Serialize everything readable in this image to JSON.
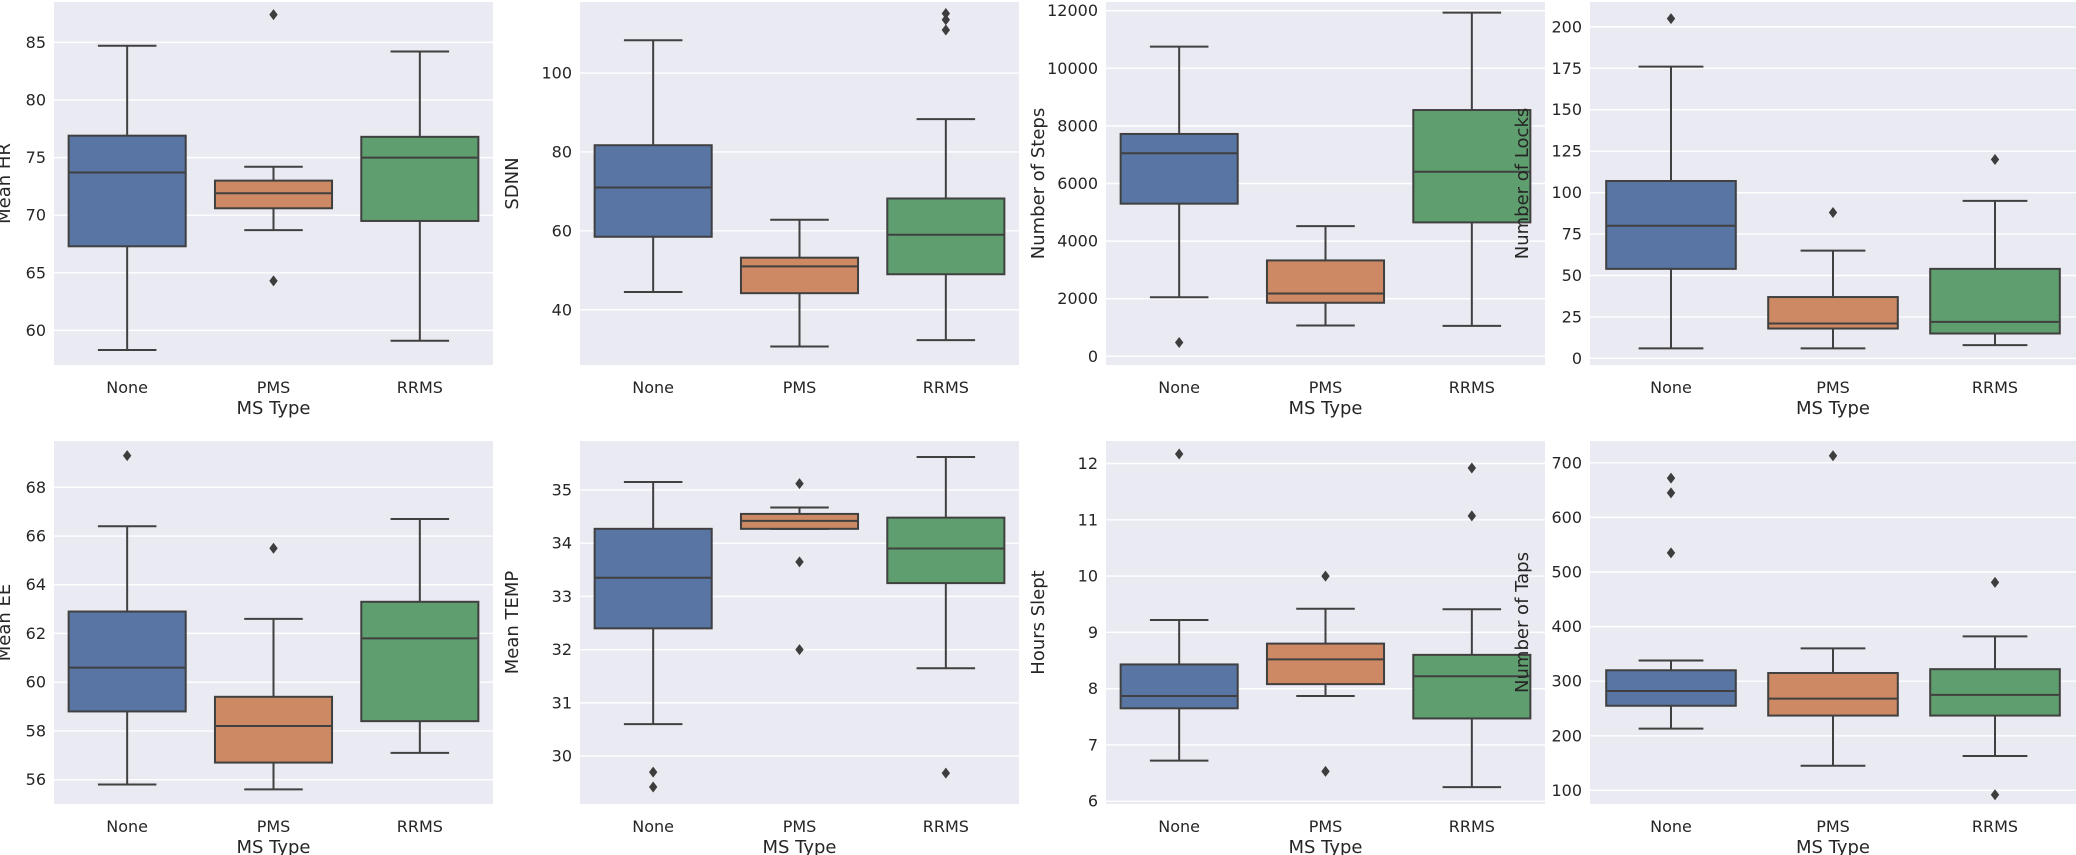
{
  "figure": {
    "rows": 2,
    "cols": 4,
    "palette": {
      "background": "#eaeaf2",
      "grid": "#ffffff",
      "text": "#262626",
      "line": "#404040"
    }
  },
  "chart_data": [
    {
      "type": "box",
      "xlabel": "MS Type",
      "ylabel": "Mean HR",
      "categories": [
        "None",
        "PMS",
        "RRMS"
      ],
      "ylim": [
        57,
        88.5
      ],
      "yticks": [
        60,
        65,
        70,
        75,
        80,
        85
      ],
      "colors": [
        "#5875a4",
        "#cc8963",
        "#5f9e6e"
      ],
      "boxes": [
        {
          "min": 58.3,
          "q1": 67.3,
          "median": 73.7,
          "q3": 76.9,
          "max": 84.7,
          "outliers": []
        },
        {
          "min": 68.7,
          "q1": 70.6,
          "median": 71.9,
          "q3": 73.0,
          "max": 74.2,
          "outliers": [
            87.4,
            64.3
          ]
        },
        {
          "min": 59.1,
          "q1": 69.5,
          "median": 75.0,
          "q3": 76.8,
          "max": 84.2,
          "outliers": []
        }
      ]
    },
    {
      "type": "box",
      "xlabel": "",
      "ylabel": "SDNN",
      "categories": [
        "None",
        "PMS",
        "RRMS"
      ],
      "ylim": [
        26,
        118
      ],
      "yticks": [
        40,
        60,
        80,
        100
      ],
      "colors": [
        "#5875a4",
        "#cc8963",
        "#5f9e6e"
      ],
      "boxes": [
        {
          "min": 44.5,
          "q1": 58.5,
          "median": 71.0,
          "q3": 81.7,
          "max": 108.3,
          "outliers": []
        },
        {
          "min": 30.7,
          "q1": 44.2,
          "median": 51.0,
          "q3": 53.2,
          "max": 62.8,
          "outliers": []
        },
        {
          "min": 32.3,
          "q1": 49.0,
          "median": 59.0,
          "q3": 68.2,
          "max": 88.3,
          "outliers": [
            110.9,
            113.5,
            115.1
          ]
        }
      ]
    },
    {
      "type": "box",
      "xlabel": "MS Type",
      "ylabel": "Number of Steps",
      "categories": [
        "None",
        "PMS",
        "RRMS"
      ],
      "ylim": [
        -300,
        12300
      ],
      "yticks": [
        0,
        2000,
        4000,
        6000,
        8000,
        10000,
        12000
      ],
      "colors": [
        "#5875a4",
        "#cc8963",
        "#5f9e6e"
      ],
      "boxes": [
        {
          "min": 2050,
          "q1": 5300,
          "median": 7050,
          "q3": 7720,
          "max": 10750,
          "outliers": [
            480
          ]
        },
        {
          "min": 1070,
          "q1": 1860,
          "median": 2180,
          "q3": 3330,
          "max": 4520,
          "outliers": []
        },
        {
          "min": 1060,
          "q1": 4650,
          "median": 6410,
          "q3": 8550,
          "max": 11930,
          "outliers": []
        }
      ]
    },
    {
      "type": "box",
      "xlabel": "MS Type",
      "ylabel": "Number of Locks",
      "categories": [
        "None",
        "PMS",
        "RRMS"
      ],
      "ylim": [
        -4,
        215
      ],
      "yticks": [
        0,
        25,
        50,
        75,
        100,
        125,
        150,
        175,
        200
      ],
      "colors": [
        "#5875a4",
        "#cc8963",
        "#5f9e6e"
      ],
      "boxes": [
        {
          "min": 6,
          "q1": 54,
          "median": 80,
          "q3": 107,
          "max": 176,
          "outliers": [
            205
          ]
        },
        {
          "min": 6,
          "q1": 18,
          "median": 21,
          "q3": 37,
          "max": 65,
          "outliers": [
            88
          ]
        },
        {
          "min": 8,
          "q1": 15,
          "median": 22,
          "q3": 54,
          "max": 95,
          "outliers": [
            120
          ]
        }
      ]
    },
    {
      "type": "box",
      "xlabel": "MS Type",
      "ylabel": "Mean EE",
      "categories": [
        "None",
        "PMS",
        "RRMS"
      ],
      "ylim": [
        55,
        69.9
      ],
      "yticks": [
        56,
        58,
        60,
        62,
        64,
        66,
        68
      ],
      "colors": [
        "#5875a4",
        "#cc8963",
        "#5f9e6e"
      ],
      "boxes": [
        {
          "min": 55.8,
          "q1": 58.8,
          "median": 60.6,
          "q3": 62.9,
          "max": 66.4,
          "outliers": [
            69.3
          ]
        },
        {
          "min": 55.6,
          "q1": 56.7,
          "median": 58.2,
          "q3": 59.4,
          "max": 62.6,
          "outliers": [
            65.5
          ]
        },
        {
          "min": 57.1,
          "q1": 58.4,
          "median": 61.8,
          "q3": 63.3,
          "max": 66.7,
          "outliers": []
        }
      ]
    },
    {
      "type": "box",
      "xlabel": "MS Type",
      "ylabel": "Mean TEMP",
      "categories": [
        "None",
        "PMS",
        "RRMS"
      ],
      "ylim": [
        29.1,
        35.92
      ],
      "yticks": [
        30,
        31,
        32,
        33,
        34,
        35
      ],
      "colors": [
        "#5875a4",
        "#cc8963",
        "#5f9e6e"
      ],
      "boxes": [
        {
          "min": 30.6,
          "q1": 32.4,
          "median": 33.35,
          "q3": 34.27,
          "max": 35.15,
          "outliers": [
            29.7,
            29.42
          ]
        },
        {
          "min": 34.27,
          "q1": 34.27,
          "median": 34.42,
          "q3": 34.55,
          "max": 34.67,
          "outliers": [
            35.12,
            33.65,
            32.0
          ]
        },
        {
          "min": 31.65,
          "q1": 33.25,
          "median": 33.9,
          "q3": 34.48,
          "max": 35.62,
          "outliers": [
            29.68
          ]
        }
      ]
    },
    {
      "type": "box",
      "xlabel": "MS Type",
      "ylabel": "Hours Slept",
      "categories": [
        "None",
        "PMS",
        "RRMS"
      ],
      "ylim": [
        5.95,
        12.4
      ],
      "yticks": [
        6,
        7,
        8,
        9,
        10,
        11,
        12
      ],
      "colors": [
        "#5875a4",
        "#cc8963",
        "#5f9e6e"
      ],
      "boxes": [
        {
          "min": 6.72,
          "q1": 7.65,
          "median": 7.87,
          "q3": 8.43,
          "max": 9.22,
          "outliers": [
            12.17
          ]
        },
        {
          "min": 7.87,
          "q1": 8.08,
          "median": 8.52,
          "q3": 8.8,
          "max": 9.42,
          "outliers": [
            10.0,
            6.53
          ]
        },
        {
          "min": 6.25,
          "q1": 7.47,
          "median": 8.22,
          "q3": 8.6,
          "max": 9.41,
          "outliers": [
            11.92,
            11.07
          ]
        }
      ]
    },
    {
      "type": "box",
      "xlabel": "MS Type",
      "ylabel": "Number of Taps",
      "categories": [
        "None",
        "PMS",
        "RRMS"
      ],
      "ylim": [
        75,
        740
      ],
      "yticks": [
        100,
        200,
        300,
        400,
        500,
        600,
        700
      ],
      "colors": [
        "#5875a4",
        "#cc8963",
        "#5f9e6e"
      ],
      "boxes": [
        {
          "min": 213,
          "q1": 255,
          "median": 282,
          "q3": 320,
          "max": 338,
          "outliers": [
            672,
            645,
            535
          ]
        },
        {
          "min": 145,
          "q1": 237,
          "median": 268,
          "q3": 315,
          "max": 360,
          "outliers": [
            713
          ]
        },
        {
          "min": 163,
          "q1": 237,
          "median": 275,
          "q3": 322,
          "max": 382,
          "outliers": [
            481,
            92
          ]
        }
      ]
    }
  ]
}
